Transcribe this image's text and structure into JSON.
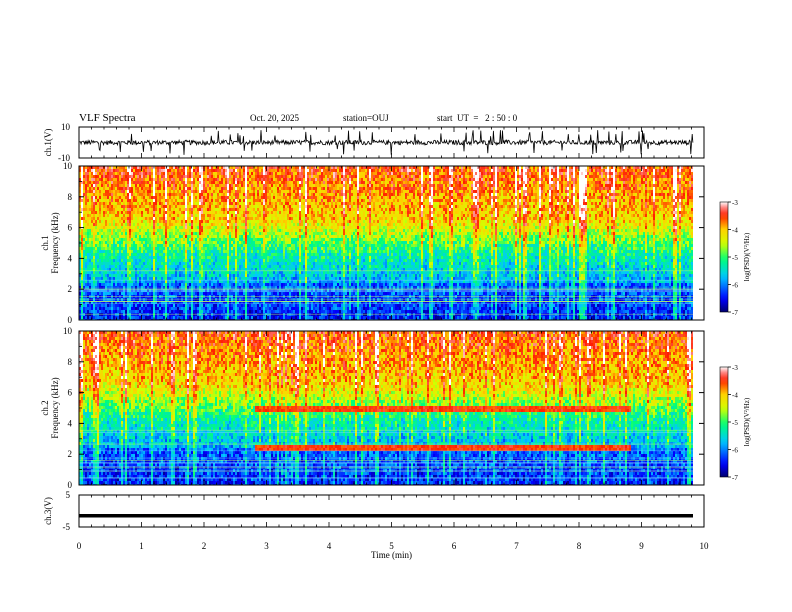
{
  "header": {
    "title": "VLF Spectra",
    "date": "Oct. 20, 2025",
    "station": "station=OUJ",
    "start_ut": "start  UT  =   2 : 50 : 0"
  },
  "colorbar": {
    "label": "log(PSD)(V²/Hz)",
    "ticks": [
      "-3",
      "-4",
      "-5",
      "-6",
      "-7"
    ],
    "range": [
      -7,
      -3
    ],
    "colors": [
      "#000080",
      "#0000ff",
      "#00c8ff",
      "#00ff80",
      "#ffff00",
      "#ff0000",
      "#ffffff"
    ]
  },
  "chart_data": [
    {
      "type": "line",
      "name": "ch1-waveform",
      "ylabel": "ch.1(V)",
      "ylim": [
        -10,
        10
      ],
      "y_tick_labels": [
        "10",
        "-10"
      ],
      "description_values": {
        "baseline": 0,
        "typical_amplitude": 3,
        "spike_amplitude": 8
      }
    },
    {
      "type": "heatmap",
      "name": "ch1-spectrogram",
      "ylabel_line1": "ch.1",
      "ylabel_line2": "Frequency (kHz)",
      "ylim": [
        0,
        10
      ],
      "y_tick_labels": [
        "10",
        "8",
        "6",
        "4",
        "2",
        "0"
      ],
      "xlim": [
        0,
        9.8
      ]
    },
    {
      "type": "heatmap",
      "name": "ch2-spectrogram",
      "ylabel_line1": "ch.2",
      "ylabel_line2": "Frequency (kHz)",
      "ylim": [
        0,
        10
      ],
      "y_tick_labels": [
        "10",
        "8",
        "6",
        "4",
        "2",
        "0"
      ],
      "xlim": [
        0,
        9.8
      ],
      "band_features": [
        {
          "freq_khz": 5.0,
          "t_start_min": 2.8,
          "t_end_min": 8.8
        },
        {
          "freq_khz": 2.5,
          "t_start_min": 2.8,
          "t_end_min": 8.8
        }
      ]
    },
    {
      "type": "line",
      "name": "ch3-waveform",
      "ylabel": "ch.3(V)",
      "ylim": [
        -5,
        5
      ],
      "y_tick_labels": [
        "5",
        "-5"
      ],
      "constant_value": -1.5
    }
  ],
  "x_axis": {
    "label": "Time  (min)",
    "range": [
      0,
      10
    ],
    "tick_labels": [
      "0",
      "1",
      "2",
      "3",
      "4",
      "5",
      "6",
      "7",
      "8",
      "9",
      "10"
    ]
  }
}
